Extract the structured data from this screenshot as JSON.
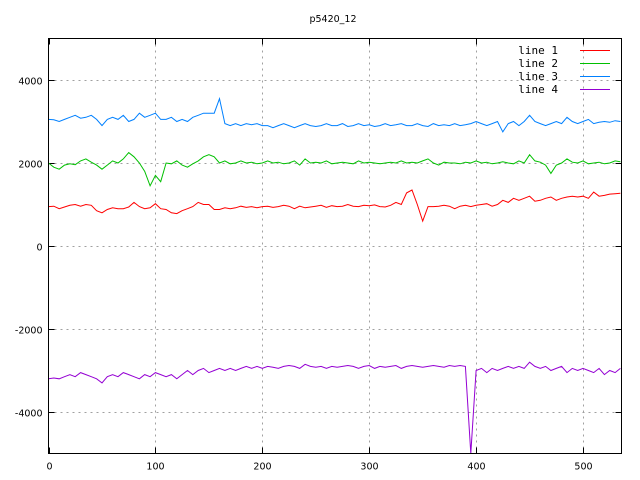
{
  "chart_data": {
    "type": "line",
    "title": "p5420_12",
    "xlabel": "",
    "ylabel": "",
    "xlim": [
      0,
      536
    ],
    "ylim": [
      -5000,
      5000
    ],
    "xticks": [
      0,
      100,
      200,
      300,
      400,
      500
    ],
    "yticks": [
      -4000,
      -2000,
      0,
      2000,
      4000
    ],
    "grid": true,
    "legend_position": "top-right",
    "x": [
      0,
      5,
      10,
      15,
      20,
      25,
      30,
      35,
      40,
      45,
      50,
      55,
      60,
      65,
      70,
      75,
      80,
      85,
      90,
      95,
      100,
      105,
      110,
      115,
      120,
      125,
      130,
      135,
      140,
      145,
      150,
      155,
      160,
      165,
      170,
      175,
      180,
      185,
      190,
      195,
      200,
      205,
      210,
      215,
      220,
      225,
      230,
      235,
      240,
      245,
      250,
      255,
      260,
      265,
      270,
      275,
      280,
      285,
      290,
      295,
      300,
      305,
      310,
      315,
      320,
      325,
      330,
      335,
      340,
      345,
      350,
      355,
      360,
      365,
      370,
      375,
      380,
      385,
      390,
      395,
      400,
      405,
      410,
      415,
      420,
      425,
      430,
      435,
      440,
      445,
      450,
      455,
      460,
      465,
      470,
      475,
      480,
      485,
      490,
      495,
      500,
      505,
      510,
      515,
      520,
      525,
      530,
      535
    ],
    "series": [
      {
        "name": "line 1",
        "color": "#ff0000",
        "values": [
          950,
          960,
          900,
          940,
          980,
          1000,
          960,
          1000,
          980,
          850,
          800,
          880,
          920,
          900,
          900,
          940,
          1050,
          950,
          900,
          920,
          1020,
          900,
          880,
          800,
          780,
          850,
          900,
          950,
          1050,
          1000,
          1000,
          880,
          880,
          920,
          900,
          920,
          960,
          930,
          950,
          920,
          950,
          960,
          930,
          950,
          980,
          960,
          900,
          960,
          920,
          940,
          960,
          980,
          930,
          970,
          950,
          960,
          1000,
          960,
          950,
          980,
          970,
          990,
          950,
          940,
          980,
          1050,
          1000,
          1280,
          1350,
          1000,
          600,
          950,
          950,
          960,
          980,
          960,
          900,
          960,
          980,
          950,
          980,
          1000,
          1020,
          960,
          1000,
          1100,
          1050,
          1150,
          1100,
          1150,
          1200,
          1080,
          1100,
          1150,
          1180,
          1100,
          1150,
          1180,
          1200,
          1180,
          1200,
          1150,
          1300,
          1200,
          1220,
          1250,
          1260,
          1270
        ]
      },
      {
        "name": "line 2",
        "color": "#00c000",
        "values": [
          2000,
          1900,
          1850,
          1950,
          1980,
          1960,
          2050,
          2100,
          2020,
          1950,
          1850,
          1950,
          2050,
          2000,
          2100,
          2250,
          2150,
          2000,
          1800,
          1450,
          1700,
          1550,
          2000,
          1980,
          2050,
          1950,
          1900,
          1980,
          2050,
          2150,
          2200,
          2150,
          2000,
          2050,
          1980,
          2000,
          2050,
          2000,
          2020,
          1980,
          2000,
          2050,
          2000,
          2020,
          1980,
          2000,
          2050,
          1950,
          2100,
          2000,
          2020,
          2000,
          2050,
          1980,
          2000,
          2020,
          2000,
          1980,
          2050,
          2000,
          2020,
          2000,
          1980,
          2000,
          2020,
          2000,
          2050,
          2000,
          2020,
          2000,
          2050,
          2100,
          2000,
          1950,
          2020,
          2000,
          2000,
          1980,
          2020,
          2000,
          2050,
          2000,
          2020,
          1980,
          2000,
          2030,
          2000,
          1980,
          2050,
          2000,
          2200,
          2050,
          2020,
          1950,
          1750,
          1950,
          2000,
          2100,
          2020,
          2000,
          2050,
          1980,
          2000,
          2020,
          1980,
          2000,
          2050,
          2030
        ]
      },
      {
        "name": "line 3",
        "color": "#0080ff",
        "values": [
          3050,
          3040,
          3000,
          3050,
          3100,
          3150,
          3080,
          3100,
          3150,
          3050,
          2900,
          3050,
          3100,
          3050,
          3150,
          3000,
          3050,
          3200,
          3100,
          3150,
          3200,
          3050,
          3050,
          3100,
          3000,
          3050,
          3000,
          3100,
          3150,
          3200,
          3200,
          3200,
          3550,
          2950,
          2900,
          2950,
          2900,
          2950,
          2920,
          2950,
          2900,
          2900,
          2850,
          2900,
          2950,
          2900,
          2850,
          2900,
          2950,
          2900,
          2880,
          2900,
          2950,
          2900,
          2900,
          2950,
          2880,
          2900,
          2950,
          2900,
          2920,
          2880,
          2900,
          2950,
          2900,
          2920,
          2950,
          2900,
          2900,
          2950,
          2900,
          2880,
          2950,
          2900,
          2920,
          2900,
          2950,
          2900,
          2920,
          2950,
          3000,
          2950,
          2900,
          2950,
          3000,
          2750,
          2950,
          3000,
          2900,
          3000,
          3150,
          3000,
          2950,
          2900,
          2950,
          3000,
          2950,
          3100,
          3000,
          2950,
          3000,
          3050,
          2950,
          2980,
          3000,
          2980,
          3020,
          3000
        ]
      },
      {
        "name": "line 4",
        "color": "#9400d3",
        "values": [
          -3200,
          -3180,
          -3200,
          -3150,
          -3100,
          -3150,
          -3050,
          -3100,
          -3150,
          -3200,
          -3300,
          -3150,
          -3100,
          -3150,
          -3050,
          -3100,
          -3150,
          -3200,
          -3100,
          -3150,
          -3050,
          -3100,
          -3150,
          -3100,
          -3200,
          -3100,
          -3000,
          -3100,
          -3000,
          -2950,
          -3050,
          -3000,
          -2950,
          -3000,
          -2950,
          -3000,
          -2950,
          -2900,
          -2950,
          -2900,
          -2950,
          -2900,
          -2920,
          -2950,
          -2900,
          -2880,
          -2900,
          -2950,
          -2850,
          -2900,
          -2920,
          -2900,
          -2950,
          -2900,
          -2920,
          -2900,
          -2880,
          -2900,
          -2950,
          -2900,
          -2880,
          -2950,
          -2900,
          -2920,
          -2900,
          -2880,
          -2950,
          -2900,
          -2880,
          -2900,
          -2920,
          -2900,
          -2880,
          -2900,
          -2920,
          -2880,
          -2900,
          -2880,
          -2900,
          -5000,
          -3000,
          -2950,
          -3050,
          -2950,
          -3000,
          -2950,
          -2900,
          -2950,
          -2900,
          -2950,
          -2800,
          -2900,
          -2950,
          -2900,
          -3000,
          -2950,
          -2900,
          -3050,
          -2950,
          -3000,
          -2950,
          -3000,
          -3050,
          -2950,
          -3100,
          -3000,
          -3050,
          -2950
        ]
      }
    ]
  }
}
